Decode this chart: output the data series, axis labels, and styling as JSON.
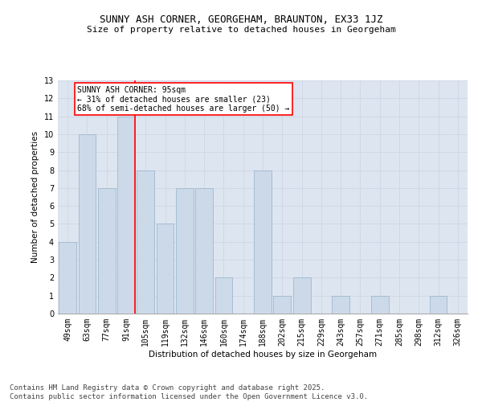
{
  "title": "SUNNY ASH CORNER, GEORGEHAM, BRAUNTON, EX33 1JZ",
  "subtitle": "Size of property relative to detached houses in Georgeham",
  "xlabel": "Distribution of detached houses by size in Georgeham",
  "ylabel": "Number of detached properties",
  "categories": [
    "49sqm",
    "63sqm",
    "77sqm",
    "91sqm",
    "105sqm",
    "119sqm",
    "132sqm",
    "146sqm",
    "160sqm",
    "174sqm",
    "188sqm",
    "202sqm",
    "215sqm",
    "229sqm",
    "243sqm",
    "257sqm",
    "271sqm",
    "285sqm",
    "298sqm",
    "312sqm",
    "326sqm"
  ],
  "values": [
    4,
    10,
    7,
    11,
    8,
    5,
    7,
    7,
    2,
    0,
    8,
    1,
    2,
    0,
    1,
    0,
    1,
    0,
    0,
    1,
    0
  ],
  "bar_color": "#ccd9e8",
  "bar_edge_color": "#a0b8d0",
  "vline_x": 3.45,
  "vline_color": "red",
  "ylim": [
    0,
    13
  ],
  "yticks": [
    0,
    1,
    2,
    3,
    4,
    5,
    6,
    7,
    8,
    9,
    10,
    11,
    12,
    13
  ],
  "annotation_text": "SUNNY ASH CORNER: 95sqm\n← 31% of detached houses are smaller (23)\n68% of semi-detached houses are larger (50) →",
  "annotation_box_color": "white",
  "annotation_box_edge": "red",
  "footer": "Contains HM Land Registry data © Crown copyright and database right 2025.\nContains public sector information licensed under the Open Government Licence v3.0.",
  "grid_color": "#d0d8e8",
  "background_color": "#dde5f0",
  "title_fontsize": 9,
  "subtitle_fontsize": 8,
  "axis_label_fontsize": 7.5,
  "tick_fontsize": 7,
  "footer_fontsize": 6.5,
  "annotation_fontsize": 7
}
